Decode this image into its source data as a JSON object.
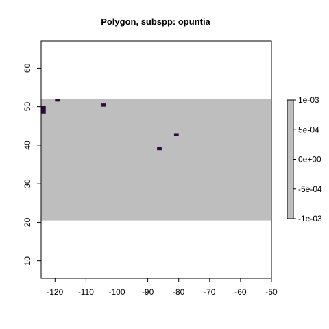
{
  "chart_data": {
    "type": "heatmap",
    "title": "Polygon, subspp: opuntia",
    "xlabel": "",
    "ylabel": "",
    "xlim": [
      -124.5,
      -50
    ],
    "ylim": [
      5.5,
      67
    ],
    "x_ticks": [
      -120,
      -110,
      -100,
      -90,
      -80,
      -70,
      -60,
      -50
    ],
    "x_tick_labels": [
      "-120",
      "-110",
      "-100",
      "-90",
      "-80",
      "-70",
      "-60",
      "-50"
    ],
    "y_ticks": [
      10,
      20,
      30,
      40,
      50,
      60
    ],
    "y_tick_labels": [
      "10",
      "20",
      "30",
      "40",
      "50",
      "60"
    ],
    "raster_extent": {
      "xmin": -124.5,
      "xmax": -50,
      "ymin": 20.5,
      "ymax": 52
    },
    "raster_fill_color": "#bebebe",
    "cell_color": "#2d0b3a",
    "cells": [
      {
        "xmin": -124.5,
        "xmax": -123.0,
        "ymin": 48.2,
        "ymax": 50.2
      },
      {
        "xmin": -120.0,
        "xmax": -118.5,
        "ymin": 51.3,
        "ymax": 52.0
      },
      {
        "xmin": -105.0,
        "xmax": -103.5,
        "ymin": 50.0,
        "ymax": 50.8
      },
      {
        "xmin": -87.0,
        "xmax": -85.5,
        "ymin": 38.7,
        "ymax": 39.5
      },
      {
        "xmin": -81.5,
        "xmax": -80.0,
        "ymin": 42.4,
        "ymax": 43.1
      }
    ],
    "legend": {
      "position": "right",
      "color": "#bebebe",
      "range": [
        -0.001,
        0.001
      ],
      "ticks": [
        0.001,
        0.0005,
        0,
        -0.0005,
        -0.001
      ],
      "tick_labels": [
        "1e-03",
        "5e-04",
        "0e+00",
        "-5e-04",
        "-1e-03"
      ]
    }
  }
}
